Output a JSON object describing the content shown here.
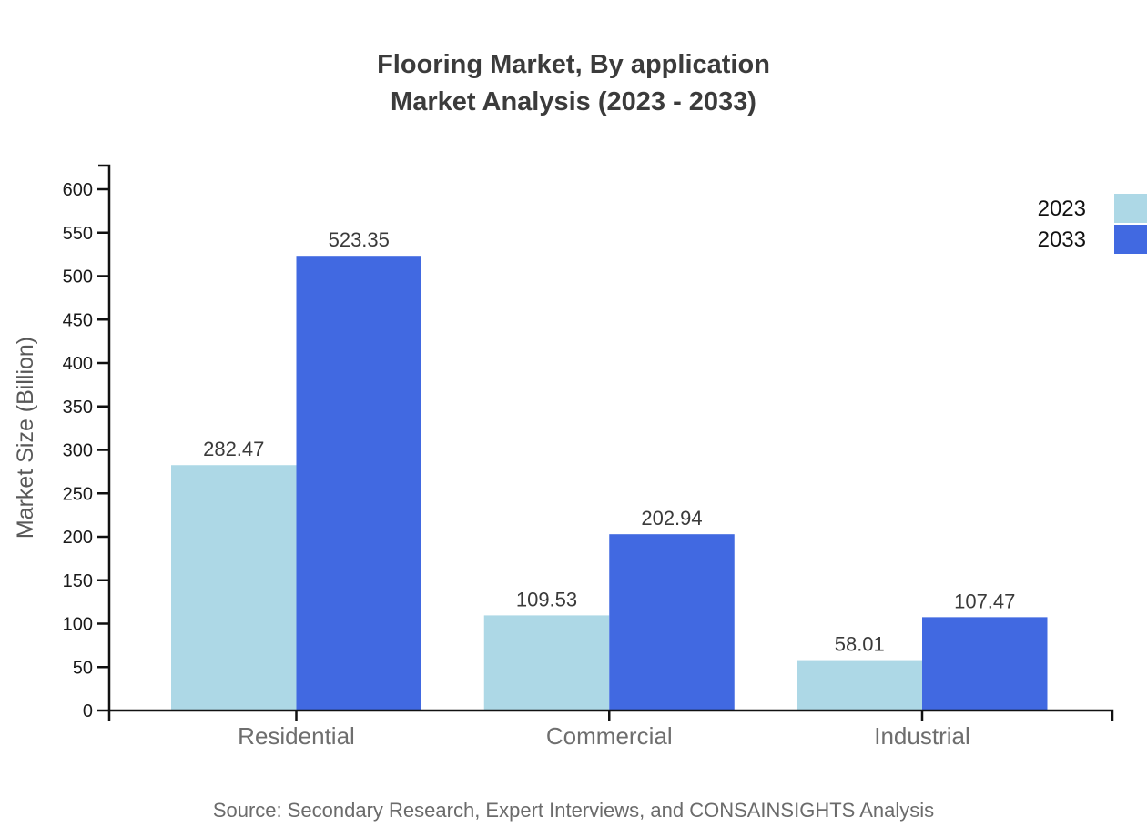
{
  "chart_data": {
    "type": "bar",
    "title": "Flooring Market, By application Market Analysis (2023 - 2033)",
    "title_lines": [
      "Flooring Market, By application",
      "Market Analysis (2023 - 2033)"
    ],
    "categories": [
      "Residential",
      "Commercial",
      "Industrial"
    ],
    "series": [
      {
        "name": "2023",
        "color": "#ADD8E6",
        "values": [
          282.47,
          109.53,
          58.01
        ]
      },
      {
        "name": "2033",
        "color": "#4169E1",
        "values": [
          523.35,
          202.94,
          107.47
        ]
      }
    ],
    "xlabel": "",
    "ylabel": "Market Size (Billion)",
    "ylim": [
      0,
      600
    ],
    "yticks": [
      0,
      50,
      100,
      150,
      200,
      250,
      300,
      350,
      400,
      450,
      500,
      550,
      600
    ],
    "grid": false,
    "legend_position": "top-right",
    "value_label_decimals": 2
  },
  "footer": {
    "source": "Source: Secondary Research, Expert Interviews, and CONSAINSIGHTS Analysis"
  }
}
